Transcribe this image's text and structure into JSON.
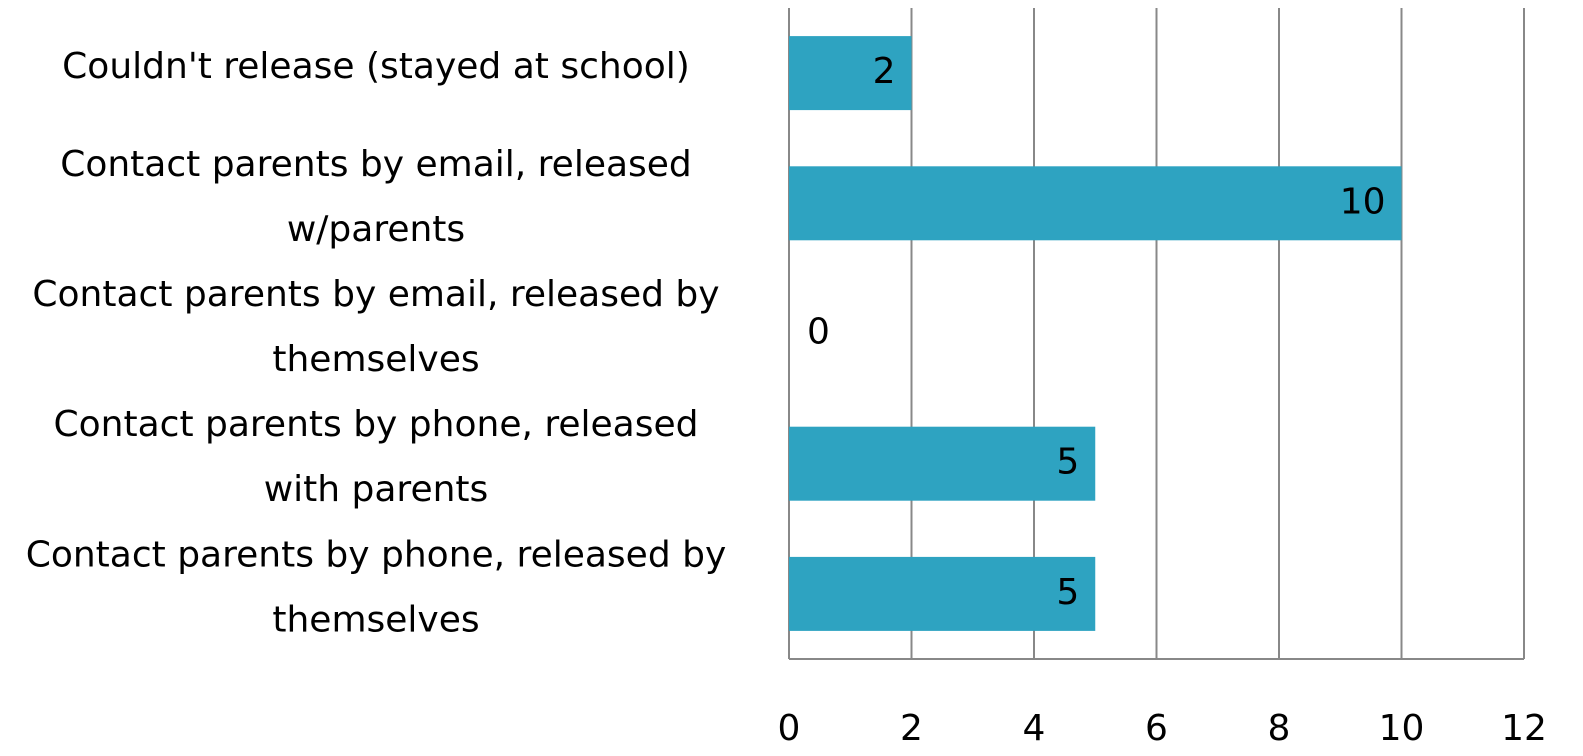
{
  "chart_data": {
    "type": "bar",
    "orientation": "horizontal",
    "categories": [
      "Couldn't release (stayed at school)",
      "Contact parents by email, released w/parents",
      "Contact parents by email, released by themselves",
      "Contact parents by phone, released with parents",
      "Contact parents by phone, released by themselves"
    ],
    "values": [
      2,
      10,
      0,
      5,
      5
    ],
    "color": "#2ea3c1",
    "xlim": [
      0,
      12
    ],
    "xticks": [
      0,
      2,
      4,
      6,
      8,
      10,
      12
    ],
    "grid": true
  }
}
